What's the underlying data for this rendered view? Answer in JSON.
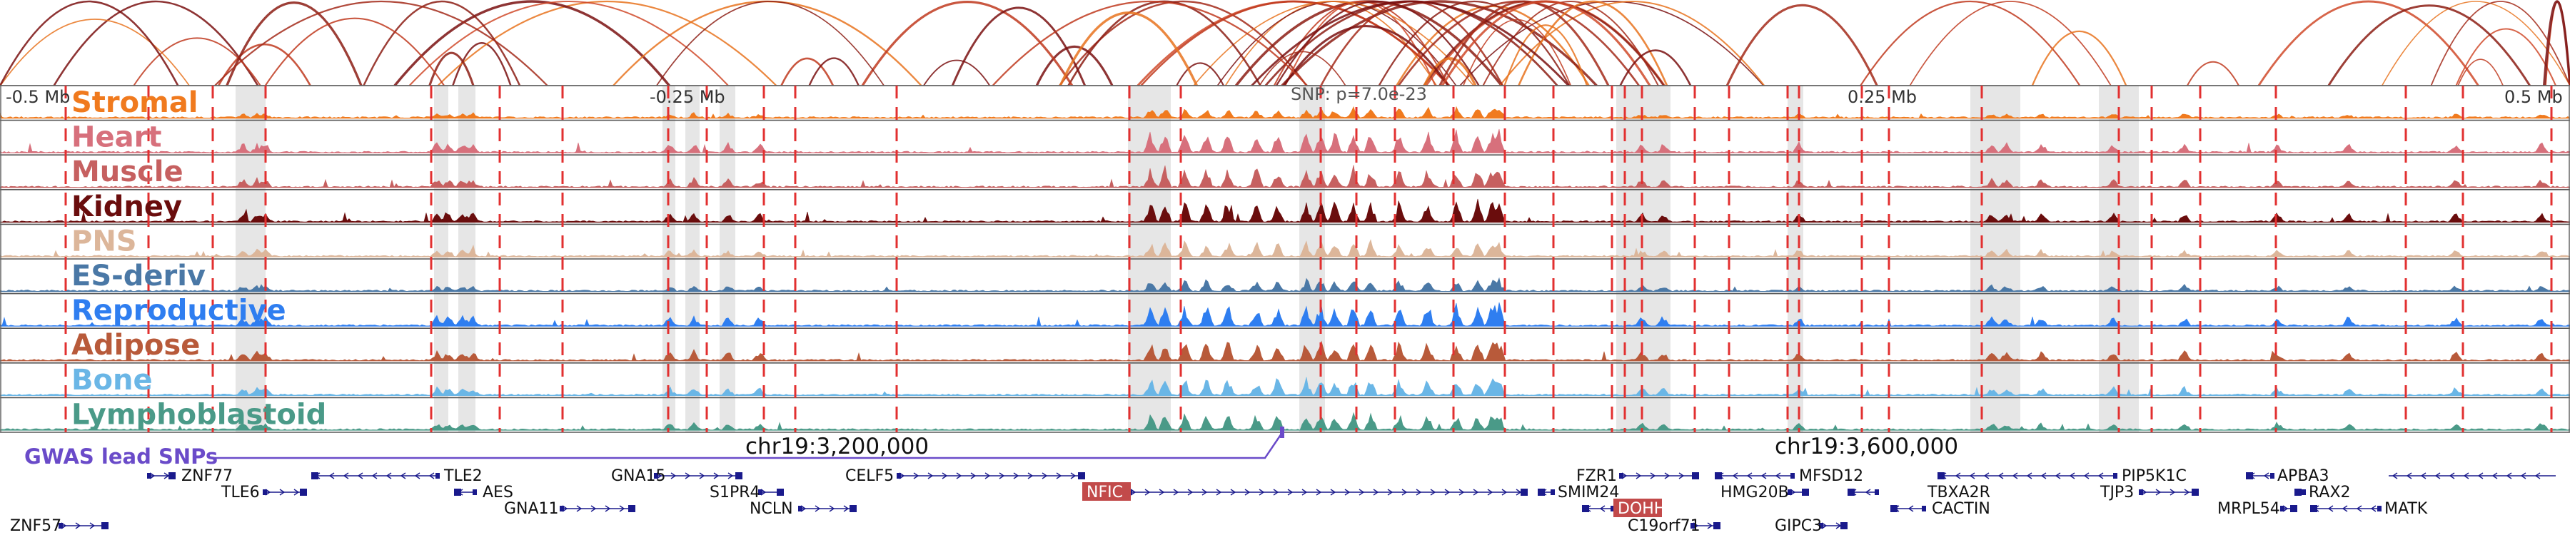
{
  "colors": {
    "Stromal": "#f07a1e",
    "Heart": "#d7707c",
    "Muscle": "#c66060",
    "Kidney": "#6a0d0d",
    "PNS": "#dcb69a",
    "ES-deriv": "#4a78a6",
    "Reproductive": "#2f7ef0",
    "Adipose": "#b85a3a",
    "Bone": "#6ab6e6",
    "Lymphoblastoid": "#4a9a88",
    "gwas": "#6a4bc9",
    "genes": "#1a1a8c",
    "highlight_gene": "#c24a4a",
    "marker_line": "#e23030",
    "shade": "#dedede"
  },
  "tracks": [
    "Stromal",
    "Heart",
    "Muscle",
    "Kidney",
    "PNS",
    "ES-deriv",
    "Reproductive",
    "Adipose",
    "Bone",
    "Lymphoblastoid"
  ],
  "position_labels": [
    "-0.5 Mb",
    "-0.25 Mb",
    "0.25 Mb",
    "0.5 Mb"
  ],
  "snp_label": "SNP: p=7.0e-23",
  "gwas_label": "GWAS lead SNPs",
  "coords": [
    "chr19:3,200,000",
    "chr19:3,600,000"
  ],
  "genes": [
    "ZNF77",
    "TLE6",
    "ZNF57",
    "TLE2",
    "AES",
    "GNA11",
    "GNA15",
    "S1PR4",
    "NCLN",
    "CELF5",
    "NFIC",
    "SMIM24",
    "FZR1",
    "DOHH",
    "C19orf71",
    "MFSD12",
    "HMG20B",
    "GIPC3",
    "TBXA2R",
    "CACTIN",
    "PIP5K1C",
    "TJP3",
    "APBA3",
    "RAX2",
    "MRPL54",
    "MATK"
  ],
  "highlighted_genes": [
    "NFIC",
    "DOHH"
  ]
}
